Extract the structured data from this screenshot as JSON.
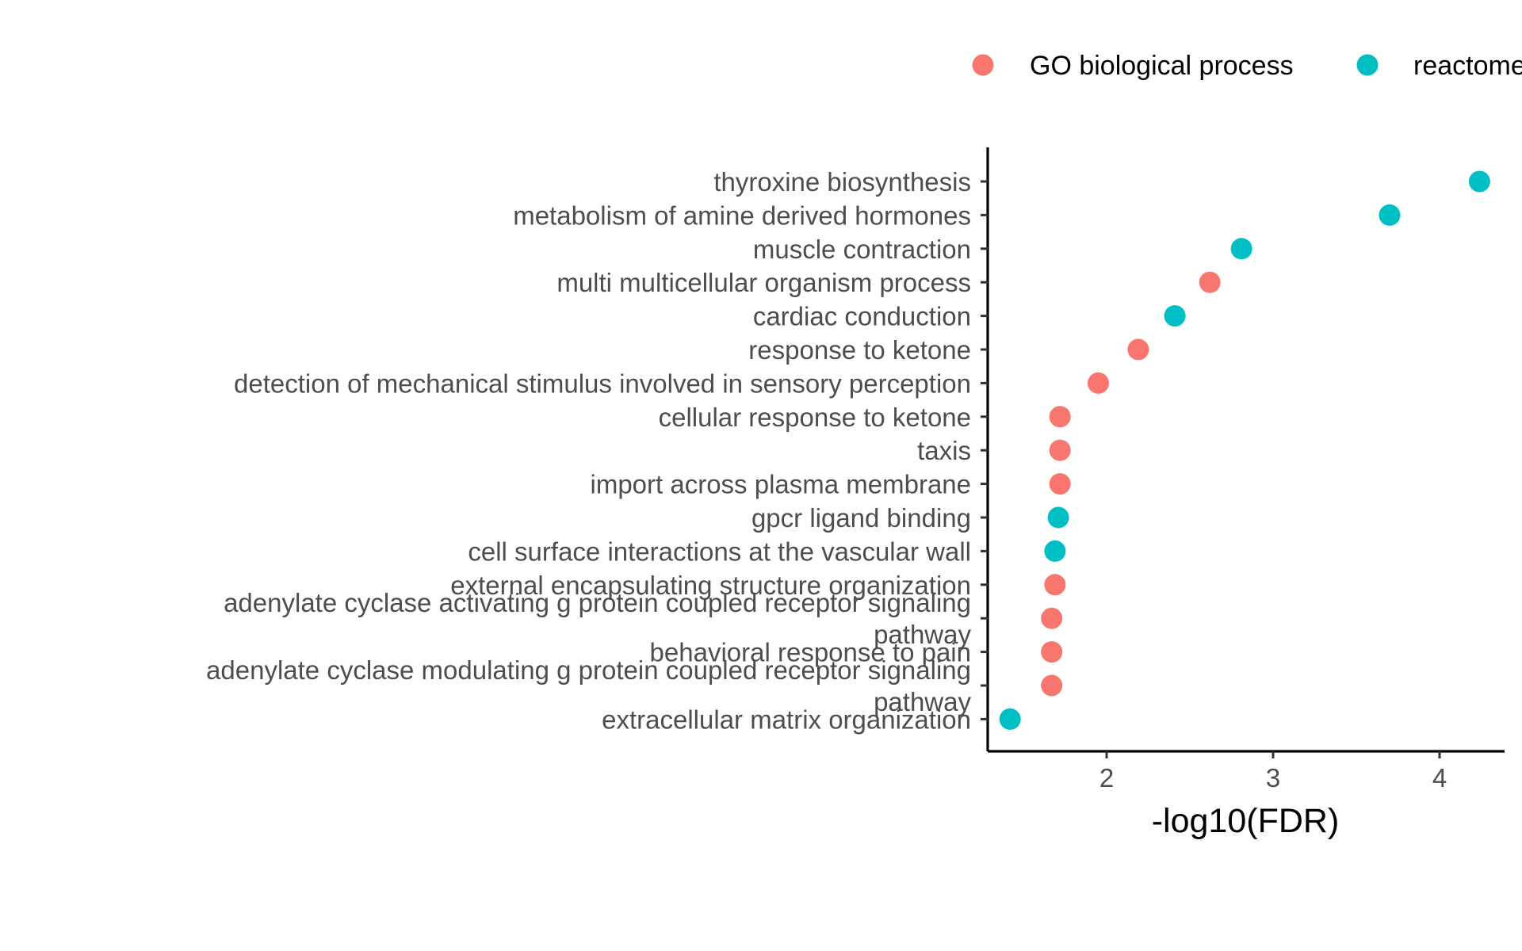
{
  "chart_data": {
    "type": "scatter",
    "title": "",
    "xlabel": "-log10(FDR)",
    "ylabel": "",
    "xlim": [
      1.3,
      4.4
    ],
    "xticks": [
      "2",
      "3",
      "4"
    ],
    "grid": false,
    "legend_position": "top",
    "categories": [
      "thyroxine biosynthesis",
      "metabolism of amine derived hormones",
      "muscle contraction",
      "multi multicellular organism process",
      "cardiac conduction",
      "response to ketone",
      "detection of mechanical stimulus involved in sensory perception",
      "cellular response to ketone",
      "taxis",
      "import across plasma membrane",
      "gpcr ligand binding",
      "cell surface interactions at the vascular wall",
      "external encapsulating structure organization",
      "adenylate cyclase activating g protein coupled receptor signaling pathway",
      "behavioral response to pain",
      "adenylate cyclase modulating g protein coupled receptor signaling pathway",
      "extracellular matrix organization"
    ],
    "category_label_lines": [
      [
        "thyroxine biosynthesis"
      ],
      [
        "metabolism of amine derived hormones"
      ],
      [
        "muscle contraction"
      ],
      [
        "multi multicellular organism process"
      ],
      [
        "cardiac conduction"
      ],
      [
        "response to ketone"
      ],
      [
        "detection of mechanical stimulus involved in sensory perception"
      ],
      [
        "cellular response to ketone"
      ],
      [
        "taxis"
      ],
      [
        "import across plasma membrane"
      ],
      [
        "gpcr ligand binding"
      ],
      [
        "cell surface interactions at the vascular wall"
      ],
      [
        "external encapsulating structure organization"
      ],
      [
        "adenylate cyclase activating g protein coupled receptor signaling",
        "pathway"
      ],
      [
        "behavioral response to pain"
      ],
      [
        "adenylate cyclase modulating g protein coupled receptor signaling",
        "pathway"
      ],
      [
        "extracellular matrix organization"
      ]
    ],
    "series": [
      {
        "name": "GO biological process",
        "color": "#F8766D",
        "points": [
          {
            "category": "multi multicellular organism process",
            "x": 2.62
          },
          {
            "category": "response to ketone",
            "x": 2.19
          },
          {
            "category": "detection of mechanical stimulus involved in sensory perception",
            "x": 1.95
          },
          {
            "category": "cellular response to ketone",
            "x": 1.72
          },
          {
            "category": "taxis",
            "x": 1.72
          },
          {
            "category": "import across plasma membrane",
            "x": 1.72
          },
          {
            "category": "external encapsulating structure organization",
            "x": 1.69
          },
          {
            "category": "adenylate cyclase activating g protein coupled receptor signaling pathway",
            "x": 1.67
          },
          {
            "category": "behavioral response to pain",
            "x": 1.67
          },
          {
            "category": "adenylate cyclase modulating g protein coupled receptor signaling pathway",
            "x": 1.67
          }
        ]
      },
      {
        "name": "reactome",
        "color": "#00BFC4",
        "points": [
          {
            "category": "thyroxine biosynthesis",
            "x": 4.24
          },
          {
            "category": "metabolism of amine derived hormones",
            "x": 3.7
          },
          {
            "category": "muscle contraction",
            "x": 2.81
          },
          {
            "category": "cardiac conduction",
            "x": 2.41
          },
          {
            "category": "gpcr ligand binding",
            "x": 1.71
          },
          {
            "category": "cell surface interactions at the vascular wall",
            "x": 1.69
          },
          {
            "category": "extracellular matrix organization",
            "x": 1.42
          }
        ]
      }
    ]
  }
}
